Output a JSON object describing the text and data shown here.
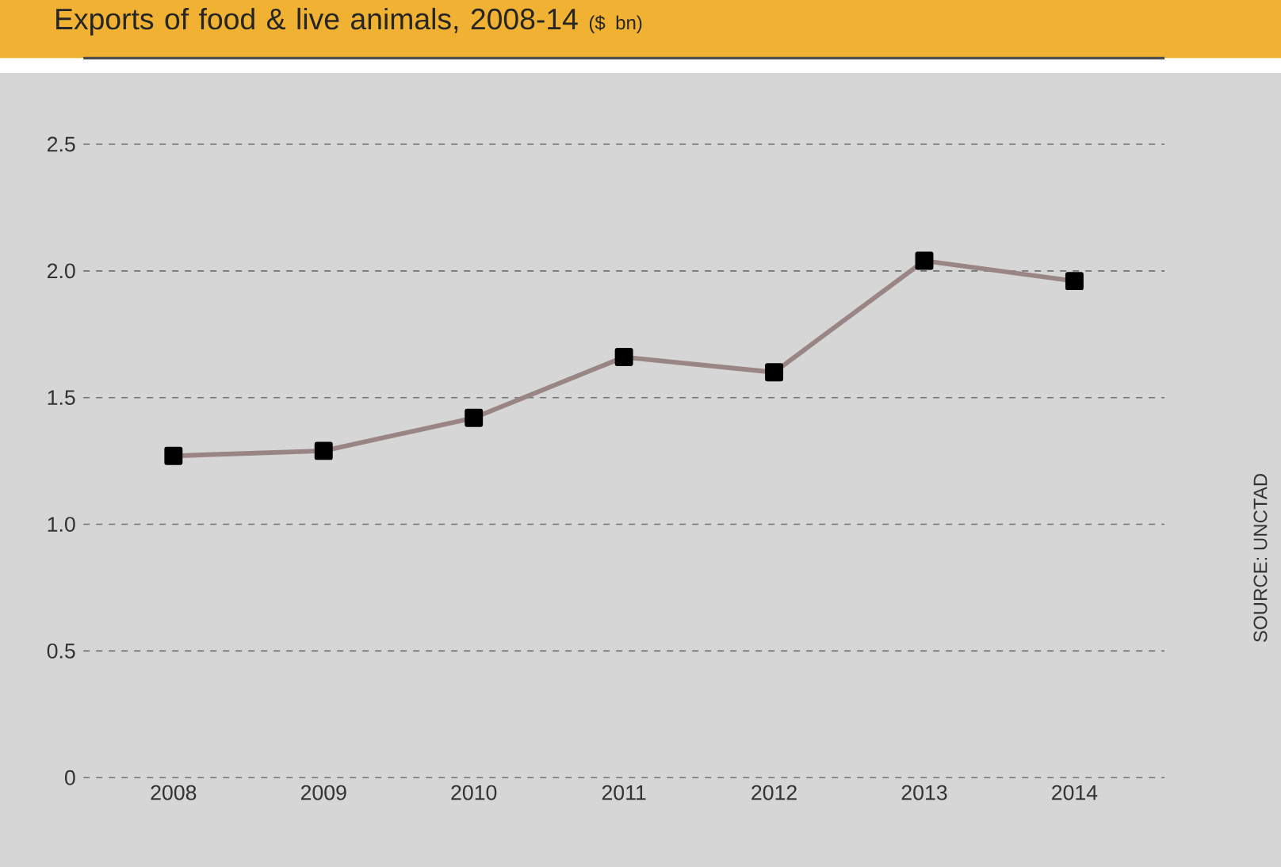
{
  "chart_data": {
    "type": "line",
    "title": "Exports of food & live animals, 2008-14",
    "subtitle": "($ bn)",
    "categories": [
      "2008",
      "2009",
      "2010",
      "2011",
      "2012",
      "2013",
      "2014"
    ],
    "series": [
      {
        "color": "#9a8585",
        "values": [
          1.27,
          1.29,
          1.42,
          1.66,
          1.6,
          2.04,
          1.96
        ]
      }
    ],
    "ylim": [
      0,
      2.84
    ],
    "yticks": [
      0,
      0.5,
      {
        "value": 1,
        "label": "1.0"
      },
      1.5,
      {
        "value": 2,
        "label": "2.0"
      },
      2.5
    ],
    "grid": "y",
    "marker": "square",
    "line_style": "solid",
    "annotations": [
      "SOURCE: UNCTAD"
    ]
  }
}
